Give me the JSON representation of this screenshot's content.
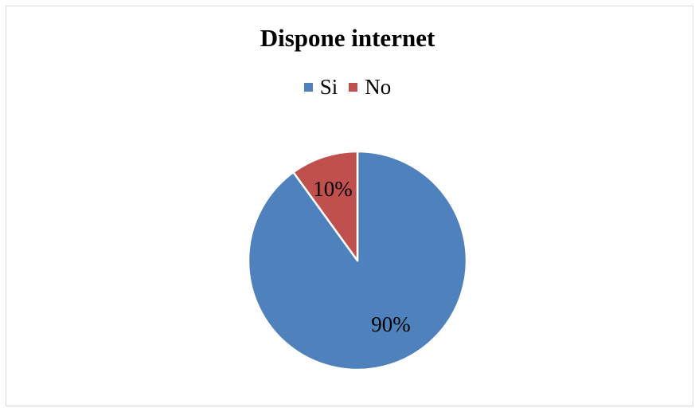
{
  "chart_data": {
    "type": "pie",
    "title": "Dispone internet",
    "categories": [
      "Si",
      "No"
    ],
    "values": [
      90,
      10
    ],
    "labels": [
      "90%",
      "10%"
    ],
    "colors": [
      "#4f81bd",
      "#c0504d"
    ],
    "legend_position": "top",
    "start_angle": "12 o'clock",
    "slice_border_color": "#ffffff"
  }
}
